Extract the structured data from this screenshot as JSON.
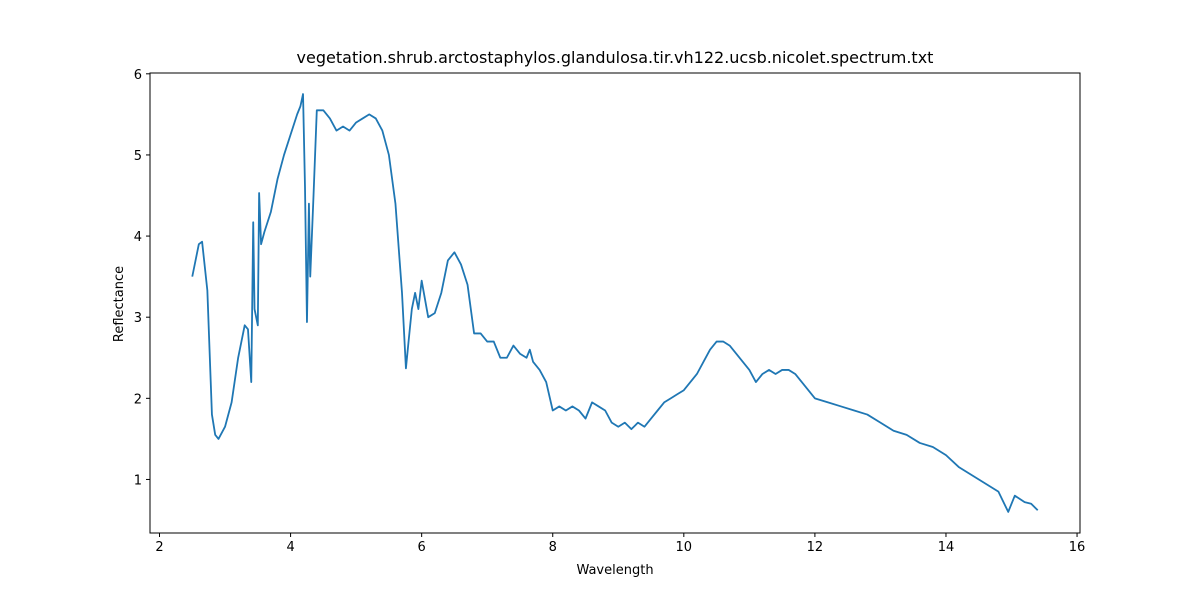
{
  "chart_data": {
    "type": "line",
    "title": "vegetation.shrub.arctostaphylos.glandulosa.tir.vh122.ucsb.nicolet.spectrum.txt",
    "x_label": "Wavelength",
    "y_label": "Reflectance",
    "xlim": [
      1.855,
      16.045
    ],
    "ylim": [
      0.34,
      6.01
    ],
    "xticks": [
      2,
      4,
      6,
      8,
      10,
      12,
      14,
      16
    ],
    "yticks": [
      1,
      2,
      3,
      4,
      5,
      6
    ],
    "grid": false,
    "series": [
      {
        "color": "#1f77b4",
        "x": [
          2.5,
          2.6,
          2.65,
          2.73,
          2.8,
          2.85,
          2.9,
          3.0,
          3.1,
          3.2,
          3.3,
          3.35,
          3.4,
          3.43,
          3.45,
          3.5,
          3.52,
          3.55,
          3.6,
          3.7,
          3.8,
          3.9,
          4.0,
          4.1,
          4.15,
          4.19,
          4.22,
          4.25,
          4.28,
          4.3,
          4.35,
          4.4,
          4.5,
          4.6,
          4.7,
          4.8,
          4.9,
          5.0,
          5.1,
          5.2,
          5.3,
          5.4,
          5.5,
          5.6,
          5.7,
          5.76,
          5.8,
          5.85,
          5.9,
          5.95,
          6.0,
          6.1,
          6.2,
          6.3,
          6.4,
          6.5,
          6.6,
          6.7,
          6.8,
          6.9,
          7.0,
          7.1,
          7.2,
          7.3,
          7.4,
          7.5,
          7.6,
          7.65,
          7.7,
          7.8,
          7.9,
          8.0,
          8.1,
          8.2,
          8.3,
          8.4,
          8.5,
          8.6,
          8.7,
          8.8,
          8.9,
          9.0,
          9.1,
          9.2,
          9.3,
          9.4,
          9.5,
          9.6,
          9.7,
          9.8,
          9.9,
          10.0,
          10.1,
          10.2,
          10.3,
          10.4,
          10.5,
          10.6,
          10.7,
          10.8,
          10.9,
          11.0,
          11.1,
          11.2,
          11.3,
          11.4,
          11.5,
          11.6,
          11.7,
          11.8,
          11.9,
          12.0,
          12.2,
          12.4,
          12.6,
          12.8,
          13.0,
          13.2,
          13.4,
          13.6,
          13.8,
          14.0,
          14.2,
          14.4,
          14.6,
          14.8,
          14.95,
          15.05,
          15.2,
          15.3,
          15.4
        ],
        "values": [
          3.5,
          3.9,
          3.93,
          3.33,
          1.8,
          1.55,
          1.5,
          1.65,
          1.95,
          2.5,
          2.9,
          2.85,
          2.2,
          4.17,
          3.1,
          2.9,
          4.53,
          3.9,
          4.05,
          4.3,
          4.7,
          5.0,
          5.25,
          5.5,
          5.6,
          5.75,
          4.6,
          2.94,
          4.4,
          3.5,
          4.5,
          5.55,
          5.55,
          5.45,
          5.3,
          5.35,
          5.3,
          5.4,
          5.45,
          5.5,
          5.45,
          5.3,
          5.0,
          4.4,
          3.3,
          2.37,
          2.7,
          3.1,
          3.3,
          3.1,
          3.45,
          3.0,
          3.05,
          3.3,
          3.7,
          3.8,
          3.65,
          3.4,
          2.8,
          2.8,
          2.7,
          2.7,
          2.5,
          2.5,
          2.65,
          2.55,
          2.5,
          2.6,
          2.45,
          2.35,
          2.2,
          1.85,
          1.9,
          1.85,
          1.9,
          1.85,
          1.75,
          1.95,
          1.9,
          1.85,
          1.7,
          1.65,
          1.7,
          1.62,
          1.7,
          1.65,
          1.75,
          1.85,
          1.95,
          2.0,
          2.05,
          2.1,
          2.2,
          2.3,
          2.45,
          2.6,
          2.7,
          2.7,
          2.65,
          2.55,
          2.45,
          2.35,
          2.2,
          2.3,
          2.35,
          2.3,
          2.35,
          2.35,
          2.3,
          2.2,
          2.1,
          2.0,
          1.95,
          1.9,
          1.85,
          1.8,
          1.7,
          1.6,
          1.55,
          1.45,
          1.4,
          1.3,
          1.15,
          1.05,
          0.95,
          0.85,
          0.6,
          0.8,
          0.72,
          0.7,
          0.62
        ]
      }
    ]
  }
}
